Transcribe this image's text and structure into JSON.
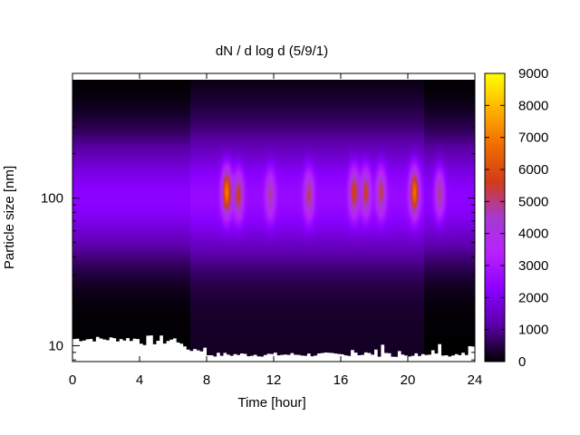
{
  "chart_data": {
    "type": "heatmap",
    "title": "dN / d log d (5/9/1)",
    "xlabel": "Time [hour]",
    "ylabel": "Particle size [nm]",
    "xlim": [
      0,
      24
    ],
    "x_ticks": [
      "0",
      "4",
      "8",
      "12",
      "16",
      "20",
      "24"
    ],
    "y_scale": "log",
    "ylim": [
      7.8,
      700
    ],
    "y_ticks": [
      {
        "value": 10,
        "label": "10"
      },
      {
        "value": 100,
        "label": "100"
      }
    ],
    "colorbar": {
      "range": [
        0,
        9000
      ],
      "ticks": [
        "0",
        "1000",
        "2000",
        "3000",
        "4000",
        "5000",
        "6000",
        "7000",
        "8000",
        "9000"
      ],
      "palette": [
        "#000000",
        "#5a00a6",
        "#8a00ff",
        "#b820ff",
        "#a63ad0",
        "#d23c16",
        "#f06c00",
        "#ffb100",
        "#ffff00"
      ]
    },
    "nucleation_modes": [
      {
        "time": 9.2,
        "center_nm": 110,
        "peak": 6800
      },
      {
        "time": 9.9,
        "center_nm": 105,
        "peak": 5300
      },
      {
        "time": 11.8,
        "center_nm": 105,
        "peak": 4600
      },
      {
        "time": 14.1,
        "center_nm": 105,
        "peak": 5000
      },
      {
        "time": 16.8,
        "center_nm": 110,
        "peak": 5600
      },
      {
        "time": 17.5,
        "center_nm": 110,
        "peak": 5300
      },
      {
        "time": 18.4,
        "center_nm": 110,
        "peak": 5100
      },
      {
        "time": 20.4,
        "center_nm": 110,
        "peak": 6600
      },
      {
        "time": 21.9,
        "center_nm": 108,
        "peak": 5000
      }
    ]
  }
}
